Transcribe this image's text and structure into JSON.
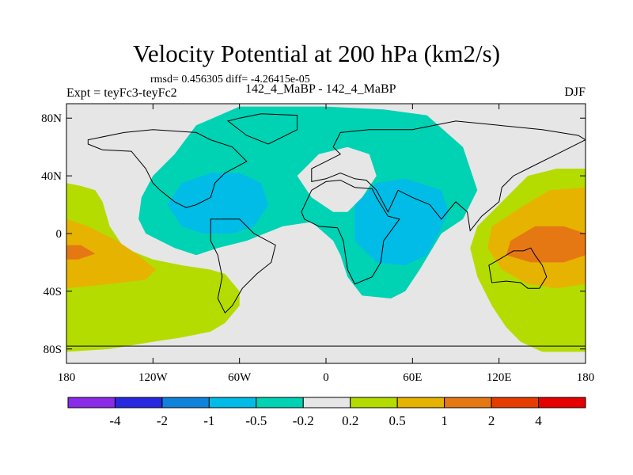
{
  "chart_data": {
    "type": "contour-map",
    "title": "Velocity Potential at 200 hPa (km2/s)",
    "stats_text": "rmsd= 0.456305 diff= -4.26415e-05",
    "left_label": "Expt = teyFc3-teyFc2",
    "center_label": "142_4_MaBP - 142_4_MaBP",
    "right_label": "DJF",
    "x_axis": {
      "range": [
        -180,
        180
      ],
      "ticks": [
        -180,
        -120,
        -60,
        0,
        60,
        120,
        180
      ],
      "tick_labels": [
        "180",
        "120W",
        "60W",
        "0",
        "60E",
        "120E",
        "180"
      ]
    },
    "y_axis": {
      "range": [
        -90,
        90
      ],
      "ticks": [
        80,
        40,
        0,
        -40,
        -80
      ],
      "tick_labels": [
        "80N",
        "40N",
        "0",
        "40S",
        "80S"
      ]
    },
    "colorbar": {
      "levels": [
        "-4",
        "-2",
        "-1",
        "-0.5",
        "-0.2",
        "0.2",
        "0.5",
        "1",
        "2",
        "4"
      ],
      "colors": [
        "#8a2be8",
        "#2828e0",
        "#0f82dc",
        "#00bce6",
        "#00d2b4",
        "#e6e6e6",
        "#b4dc00",
        "#e6b400",
        "#e67814",
        "#e63c00",
        "#e60000"
      ]
    },
    "regions": [
      {
        "name": "positive-weak-west",
        "level": "0.2 to 0.5",
        "color": "#b4dc00",
        "points": [
          [
            -180,
            35
          ],
          [
            -170,
            33
          ],
          [
            -160,
            30
          ],
          [
            -155,
            22
          ],
          [
            -150,
            5
          ],
          [
            -140,
            -10
          ],
          [
            -120,
            -18
          ],
          [
            -100,
            -22
          ],
          [
            -80,
            -25
          ],
          [
            -70,
            -28
          ],
          [
            -60,
            -40
          ],
          [
            -60,
            -50
          ],
          [
            -70,
            -62
          ],
          [
            -80,
            -68
          ],
          [
            -100,
            -72
          ],
          [
            -120,
            -75
          ],
          [
            -150,
            -80
          ],
          [
            -180,
            -82
          ]
        ]
      },
      {
        "name": "positive-moderate-west",
        "level": "0.5 to 1",
        "color": "#e6b400",
        "points": [
          [
            -180,
            10
          ],
          [
            -165,
            5
          ],
          [
            -145,
            -5
          ],
          [
            -130,
            -15
          ],
          [
            -118,
            -25
          ],
          [
            -125,
            -32
          ],
          [
            -150,
            -35
          ],
          [
            -180,
            -38
          ]
        ]
      },
      {
        "name": "positive-strong-west",
        "level": "1 to 2",
        "color": "#e67814",
        "points": [
          [
            -180,
            -8
          ],
          [
            -170,
            -8
          ],
          [
            -160,
            -14
          ],
          [
            -172,
            -18
          ],
          [
            -180,
            -18
          ]
        ]
      },
      {
        "name": "positive-weak-east",
        "level": "0.2 to 0.5",
        "color": "#b4dc00",
        "points": [
          [
            180,
            45
          ],
          [
            160,
            45
          ],
          [
            140,
            40
          ],
          [
            130,
            30
          ],
          [
            120,
            20
          ],
          [
            105,
            5
          ],
          [
            100,
            -10
          ],
          [
            105,
            -30
          ],
          [
            115,
            -50
          ],
          [
            125,
            -65
          ],
          [
            135,
            -75
          ],
          [
            150,
            -82
          ],
          [
            180,
            -82
          ]
        ]
      },
      {
        "name": "positive-moderate-east",
        "level": "0.5 to 1",
        "color": "#e6b400",
        "points": [
          [
            180,
            32
          ],
          [
            155,
            30
          ],
          [
            138,
            20
          ],
          [
            115,
            5
          ],
          [
            112,
            -10
          ],
          [
            122,
            -25
          ],
          [
            140,
            -35
          ],
          [
            160,
            -38
          ],
          [
            180,
            -35
          ]
        ]
      },
      {
        "name": "positive-strong-east",
        "level": "1 to 2",
        "color": "#e67814",
        "points": [
          [
            180,
            0
          ],
          [
            165,
            5
          ],
          [
            145,
            5
          ],
          [
            128,
            -5
          ],
          [
            125,
            -15
          ],
          [
            142,
            -20
          ],
          [
            165,
            -20
          ],
          [
            180,
            -15
          ]
        ]
      },
      {
        "name": "negative-weak-band",
        "level": "-0.5 to -0.2",
        "color": "#00d2b4",
        "points": [
          [
            -120,
            40
          ],
          [
            -105,
            55
          ],
          [
            -90,
            75
          ],
          [
            -60,
            88
          ],
          [
            0,
            88
          ],
          [
            40,
            86
          ],
          [
            70,
            82
          ],
          [
            95,
            60
          ],
          [
            105,
            30
          ],
          [
            95,
            10
          ],
          [
            80,
            0
          ],
          [
            65,
            -25
          ],
          [
            55,
            -40
          ],
          [
            45,
            -45
          ],
          [
            25,
            -43
          ],
          [
            15,
            -30
          ],
          [
            10,
            -15
          ],
          [
            5,
            -5
          ],
          [
            -10,
            8
          ],
          [
            -30,
            5
          ],
          [
            -55,
            -5
          ],
          [
            -75,
            -10
          ],
          [
            -90,
            -15
          ],
          [
            -105,
            -10
          ],
          [
            -125,
            0
          ],
          [
            -130,
            10
          ],
          [
            -128,
            25
          ]
        ]
      },
      {
        "name": "neutral-hole",
        "level": "-0.2 to 0.2",
        "color": "#e6e6e6",
        "points": [
          [
            -20,
            40
          ],
          [
            -5,
            55
          ],
          [
            15,
            60
          ],
          [
            30,
            55
          ],
          [
            35,
            40
          ],
          [
            25,
            25
          ],
          [
            15,
            15
          ],
          [
            5,
            15
          ],
          [
            -10,
            25
          ]
        ]
      },
      {
        "name": "negative-moderate-americas",
        "level": "-1 to -0.5",
        "color": "#00bce6",
        "points": [
          [
            -110,
            20
          ],
          [
            -100,
            35
          ],
          [
            -80,
            42
          ],
          [
            -60,
            42
          ],
          [
            -45,
            35
          ],
          [
            -40,
            20
          ],
          [
            -50,
            5
          ],
          [
            -65,
            0
          ],
          [
            -85,
            0
          ],
          [
            -100,
            5
          ]
        ]
      },
      {
        "name": "negative-moderate-africa-asia",
        "level": "-1 to -0.5",
        "color": "#00bce6",
        "points": [
          [
            20,
            20
          ],
          [
            35,
            35
          ],
          [
            55,
            38
          ],
          [
            80,
            30
          ],
          [
            85,
            15
          ],
          [
            78,
            0
          ],
          [
            70,
            -15
          ],
          [
            55,
            -22
          ],
          [
            35,
            -20
          ],
          [
            20,
            -5
          ]
        ]
      }
    ],
    "coastlines": [
      {
        "name": "north-america",
        "points": [
          [
            -165,
            65
          ],
          [
            -140,
            70
          ],
          [
            -120,
            72
          ],
          [
            -90,
            70
          ],
          [
            -80,
            65
          ],
          [
            -65,
            60
          ],
          [
            -55,
            50
          ],
          [
            -70,
            42
          ],
          [
            -77,
            35
          ],
          [
            -80,
            25
          ],
          [
            -90,
            20
          ],
          [
            -97,
            18
          ],
          [
            -105,
            22
          ],
          [
            -115,
            30
          ],
          [
            -120,
            35
          ],
          [
            -125,
            45
          ],
          [
            -135,
            57
          ],
          [
            -155,
            58
          ],
          [
            -165,
            62
          ]
        ]
      },
      {
        "name": "greenland",
        "points": [
          [
            -60,
            80
          ],
          [
            -45,
            83
          ],
          [
            -20,
            82
          ],
          [
            -20,
            72
          ],
          [
            -40,
            62
          ],
          [
            -55,
            68
          ],
          [
            -68,
            78
          ]
        ]
      },
      {
        "name": "south-america",
        "points": [
          [
            -80,
            10
          ],
          [
            -60,
            10
          ],
          [
            -50,
            0
          ],
          [
            -35,
            -8
          ],
          [
            -38,
            -20
          ],
          [
            -48,
            -28
          ],
          [
            -58,
            -38
          ],
          [
            -65,
            -50
          ],
          [
            -70,
            -55
          ],
          [
            -75,
            -45
          ],
          [
            -72,
            -30
          ],
          [
            -75,
            -15
          ],
          [
            -80,
            -5
          ]
        ]
      },
      {
        "name": "eurasia",
        "points": [
          [
            -10,
            36
          ],
          [
            -10,
            45
          ],
          [
            0,
            50
          ],
          [
            10,
            55
          ],
          [
            5,
            60
          ],
          [
            10,
            70
          ],
          [
            30,
            72
          ],
          [
            60,
            72
          ],
          [
            90,
            78
          ],
          [
            120,
            75
          ],
          [
            150,
            72
          ],
          [
            175,
            68
          ],
          [
            180,
            65
          ],
          [
            170,
            60
          ],
          [
            160,
            55
          ],
          [
            140,
            45
          ],
          [
            130,
            40
          ],
          [
            122,
            32
          ],
          [
            120,
            22
          ],
          [
            108,
            12
          ],
          [
            100,
            2
          ],
          [
            98,
            15
          ],
          [
            90,
            22
          ],
          [
            80,
            10
          ],
          [
            72,
            20
          ],
          [
            60,
            25
          ],
          [
            50,
            30
          ],
          [
            43,
            15
          ],
          [
            35,
            30
          ],
          [
            28,
            37
          ],
          [
            20,
            38
          ],
          [
            10,
            42
          ],
          [
            0,
            38
          ]
        ]
      },
      {
        "name": "africa",
        "points": [
          [
            -17,
            15
          ],
          [
            -10,
            30
          ],
          [
            0,
            36
          ],
          [
            10,
            37
          ],
          [
            20,
            32
          ],
          [
            32,
            31
          ],
          [
            35,
            25
          ],
          [
            43,
            12
          ],
          [
            51,
            10
          ],
          [
            40,
            -5
          ],
          [
            38,
            -20
          ],
          [
            32,
            -30
          ],
          [
            20,
            -35
          ],
          [
            15,
            -25
          ],
          [
            12,
            -5
          ],
          [
            8,
            4
          ],
          [
            -5,
            5
          ],
          [
            -15,
            10
          ]
        ]
      },
      {
        "name": "australia",
        "points": [
          [
            113,
            -22
          ],
          [
            120,
            -18
          ],
          [
            130,
            -12
          ],
          [
            137,
            -12
          ],
          [
            142,
            -10
          ],
          [
            145,
            -15
          ],
          [
            150,
            -22
          ],
          [
            153,
            -30
          ],
          [
            148,
            -38
          ],
          [
            140,
            -38
          ],
          [
            135,
            -34
          ],
          [
            125,
            -33
          ],
          [
            115,
            -34
          ]
        ]
      },
      {
        "name": "antarctica-line",
        "points": [
          [
            -180,
            -78
          ],
          [
            180,
            -78
          ]
        ]
      }
    ]
  }
}
